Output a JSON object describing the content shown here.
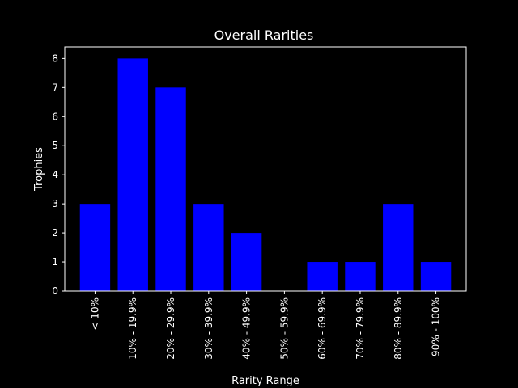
{
  "chart_data": {
    "type": "bar",
    "title": "Overall Rarities",
    "xlabel": "Rarity Range",
    "ylabel": "Trophies",
    "categories": [
      "< 10%",
      "10% - 19.9%",
      "20% - 29.9%",
      "30% - 39.9%",
      "40% - 49.9%",
      "50% - 59.9%",
      "60% - 69.9%",
      "70% - 79.9%",
      "80% - 89.9%",
      "90% - 100%"
    ],
    "values": [
      3,
      8,
      7,
      3,
      2,
      0,
      1,
      1,
      3,
      1
    ],
    "ylim": [
      0,
      8.4
    ],
    "yticks": [
      0,
      1,
      2,
      3,
      4,
      5,
      6,
      7,
      8
    ],
    "grid": false,
    "colors": {
      "background": "#000000",
      "bar": "#0000ff",
      "axes": "#ffffff",
      "text": "#ffffff"
    }
  }
}
